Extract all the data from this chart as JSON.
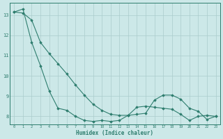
{
  "xlabel": "Humidex (Indice chaleur)",
  "x_values": [
    0,
    1,
    2,
    3,
    4,
    5,
    6,
    7,
    8,
    9,
    10,
    11,
    12,
    13,
    14,
    15,
    16,
    17,
    18,
    19,
    20,
    21,
    22,
    23
  ],
  "line1": [
    13.15,
    13.3,
    11.65,
    10.5,
    9.25,
    8.4,
    8.3,
    8.0,
    7.8,
    7.75,
    7.8,
    7.75,
    7.8,
    8.05,
    8.45,
    8.5,
    8.45,
    8.4,
    8.35,
    8.1,
    7.8,
    8.0,
    8.05,
    8.0
  ],
  "line2": [
    13.15,
    13.1,
    12.75,
    11.65,
    11.1,
    10.6,
    10.1,
    9.55,
    9.05,
    8.6,
    8.3,
    8.1,
    8.05,
    8.05,
    8.1,
    8.15,
    8.8,
    9.05,
    9.05,
    8.85,
    8.4,
    8.25,
    7.85,
    8.0
  ],
  "line_color": "#2e7d6e",
  "bg_color": "#cce8e8",
  "grid_color": "#aacccc",
  "ylim": [
    7.6,
    13.6
  ],
  "ylim_min": 7.6,
  "ylim_max": 13.6,
  "yticks": [
    8,
    9,
    10,
    11,
    12,
    13
  ],
  "xticks": [
    0,
    1,
    2,
    3,
    4,
    5,
    6,
    7,
    8,
    9,
    10,
    11,
    12,
    13,
    14,
    15,
    16,
    17,
    18,
    19,
    20,
    21,
    22,
    23
  ]
}
